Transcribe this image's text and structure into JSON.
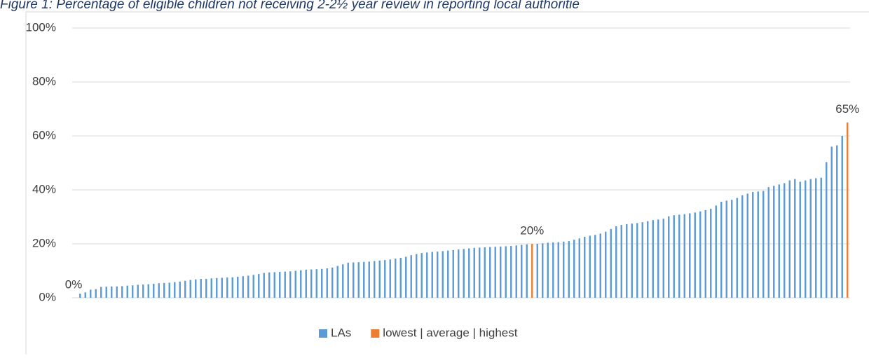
{
  "chart_data": {
    "type": "bar",
    "title": "Figure 1: Percentage of eligible children not receiving 2-2½ year review in reporting local authoritie",
    "categories": [
      null,
      null,
      null,
      null,
      null,
      null,
      null,
      null,
      null,
      null,
      null,
      null,
      null,
      null,
      null,
      null,
      null,
      null,
      null,
      null,
      null,
      null,
      null,
      null,
      null,
      null,
      null,
      null,
      null,
      null,
      null,
      null,
      null,
      null,
      null,
      null,
      null,
      null,
      null,
      null,
      null,
      null,
      null,
      null,
      null,
      null,
      null,
      null,
      null,
      null,
      null,
      null,
      null,
      null,
      null,
      null,
      null,
      null,
      null,
      null,
      null,
      null,
      null,
      null,
      null,
      null,
      null,
      null,
      null,
      null,
      null,
      null,
      null,
      null,
      null,
      null,
      null,
      null,
      null,
      null,
      null,
      null,
      null,
      null,
      null,
      null,
      null,
      null,
      null,
      null,
      null,
      null,
      null,
      null,
      null,
      null,
      null,
      null,
      null,
      null,
      null,
      null,
      null,
      null,
      null,
      null,
      null,
      null,
      null,
      null,
      null,
      null,
      null,
      null,
      null,
      null,
      null,
      null,
      null,
      null,
      null,
      null,
      null,
      null,
      null,
      null,
      null,
      null,
      null,
      null,
      null,
      null,
      null,
      null,
      null,
      null,
      null,
      null,
      null,
      null,
      null,
      null,
      null,
      null,
      null,
      null,
      null,
      null
    ],
    "series": [
      {
        "name": "LAs",
        "color": "#5b9bd5",
        "values": [
          null,
          1.5,
          2,
          3,
          3.2,
          4,
          4.1,
          4.2,
          4.2,
          4.3,
          4.5,
          4.6,
          4.8,
          4.9,
          5,
          5.2,
          5.4,
          5.5,
          5.6,
          5.8,
          6,
          6.3,
          6.6,
          6.8,
          7,
          7,
          7.2,
          7.3,
          7.4,
          7.5,
          7.6,
          7.8,
          8,
          8.2,
          8.5,
          8.8,
          9.2,
          9.4,
          9.5,
          9.6,
          9.7,
          9.8,
          10,
          10.2,
          10.4,
          10.5,
          10.6,
          10.7,
          10.9,
          11.2,
          11.8,
          12.4,
          13,
          13.1,
          13.2,
          13.3,
          13.4,
          13.6,
          13.8,
          14,
          14.2,
          14.5,
          14.8,
          15.2,
          15.8,
          16.2,
          16.6,
          16.8,
          17,
          17.1,
          17.3,
          17.5,
          17.7,
          17.9,
          18.1,
          18.3,
          18.5,
          18.6,
          18.7,
          18.8,
          18.9,
          19,
          19.1,
          19.2,
          19.4,
          19.6,
          19.8,
          null,
          20,
          20.2,
          20.4,
          20.5,
          20.6,
          20.8,
          21,
          21.5,
          22,
          22.6,
          23,
          23.3,
          23.8,
          24.5,
          25.5,
          26.5,
          27,
          27.3,
          27.5,
          27.7,
          28,
          28.4,
          28.8,
          29,
          29.3,
          30.2,
          30.6,
          30.8,
          31,
          31.3,
          31.6,
          32,
          32.5,
          33,
          34.2,
          35.6,
          36,
          36.3,
          37,
          38,
          38.6,
          39.2,
          39.4,
          39.6,
          41,
          41.5,
          42,
          42.5,
          43.5,
          44,
          43,
          43.5,
          44,
          44.3,
          44.5,
          50.3,
          56,
          56.5,
          60,
          null
        ]
      },
      {
        "name": "lowest | average | highest",
        "color": "#ed7d31",
        "values": [
          0,
          null,
          null,
          null,
          null,
          null,
          null,
          null,
          null,
          null,
          null,
          null,
          null,
          null,
          null,
          null,
          null,
          null,
          null,
          null,
          null,
          null,
          null,
          null,
          null,
          null,
          null,
          null,
          null,
          null,
          null,
          null,
          null,
          null,
          null,
          null,
          null,
          null,
          null,
          null,
          null,
          null,
          null,
          null,
          null,
          null,
          null,
          null,
          null,
          null,
          null,
          null,
          null,
          null,
          null,
          null,
          null,
          null,
          null,
          null,
          null,
          null,
          null,
          null,
          null,
          null,
          null,
          null,
          null,
          null,
          null,
          null,
          null,
          null,
          null,
          null,
          null,
          null,
          null,
          null,
          null,
          null,
          null,
          null,
          null,
          null,
          null,
          20,
          null,
          null,
          null,
          null,
          null,
          null,
          null,
          null,
          null,
          null,
          null,
          null,
          null,
          null,
          null,
          null,
          null,
          null,
          null,
          null,
          null,
          null,
          null,
          null,
          null,
          null,
          null,
          null,
          null,
          null,
          null,
          null,
          null,
          null,
          null,
          null,
          null,
          null,
          null,
          null,
          null,
          null,
          null,
          null,
          null,
          null,
          null,
          null,
          null,
          null,
          null,
          null,
          null,
          null,
          null,
          null,
          null,
          null,
          null,
          65
        ],
        "value_labels": [
          "0%",
          null,
          null,
          null,
          null,
          null,
          null,
          null,
          null,
          null,
          null,
          null,
          null,
          null,
          null,
          null,
          null,
          null,
          null,
          null,
          null,
          null,
          null,
          null,
          null,
          null,
          null,
          null,
          null,
          null,
          null,
          null,
          null,
          null,
          null,
          null,
          null,
          null,
          null,
          null,
          null,
          null,
          null,
          null,
          null,
          null,
          null,
          null,
          null,
          null,
          null,
          null,
          null,
          null,
          null,
          null,
          null,
          null,
          null,
          null,
          null,
          null,
          null,
          null,
          null,
          null,
          null,
          null,
          null,
          null,
          null,
          null,
          null,
          null,
          null,
          null,
          null,
          null,
          null,
          null,
          null,
          null,
          null,
          null,
          null,
          null,
          null,
          "20%",
          null,
          null,
          null,
          null,
          null,
          null,
          null,
          null,
          null,
          null,
          null,
          null,
          null,
          null,
          null,
          null,
          null,
          null,
          null,
          null,
          null,
          null,
          null,
          null,
          null,
          null,
          null,
          null,
          null,
          null,
          null,
          null,
          null,
          null,
          null,
          null,
          null,
          null,
          null,
          null,
          null,
          null,
          null,
          null,
          null,
          null,
          null,
          null,
          null,
          null,
          null,
          null,
          null,
          null,
          null,
          null,
          null,
          null,
          null,
          "65%"
        ]
      }
    ],
    "ylim": [
      0,
      100
    ],
    "yticks": [
      {
        "value": 0,
        "label": "0%"
      },
      {
        "value": 20,
        "label": "20%"
      },
      {
        "value": 40,
        "label": "40%"
      },
      {
        "value": 60,
        "label": "60%"
      },
      {
        "value": 80,
        "label": "80%"
      },
      {
        "value": 100,
        "label": "100%"
      }
    ],
    "grid": true,
    "legend": "bottom"
  }
}
